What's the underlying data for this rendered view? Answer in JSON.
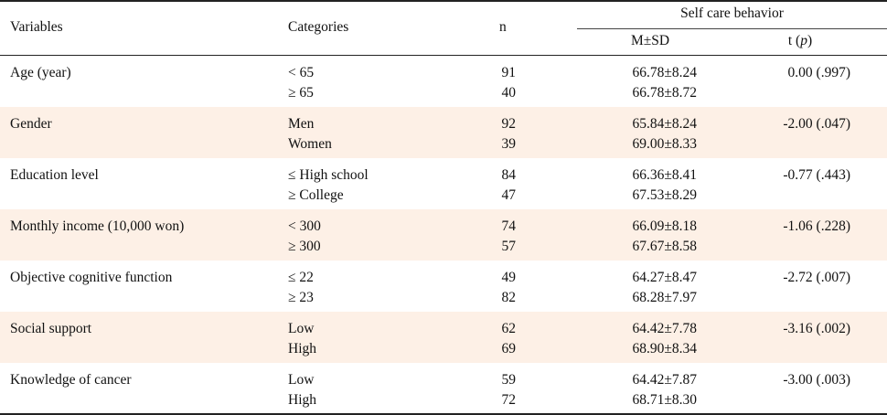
{
  "header": {
    "variables": "Variables",
    "categories": "Categories",
    "n": "n",
    "group_title": "Self care behavior",
    "msd": "M±SD",
    "t_prefix": "t (",
    "t_p": "p",
    "t_suffix": ")"
  },
  "colors": {
    "band": "#fdf0e6",
    "rule": "#222222"
  },
  "rows": [
    {
      "variable": "Age (year)",
      "cat1": "< 65",
      "cat2": "≥ 65",
      "n1": "91",
      "n2": "40",
      "msd1": "66.78±8.24",
      "msd2": "66.78±8.72",
      "t": "0.00 (.997)",
      "shaded": false
    },
    {
      "variable": "Gender",
      "cat1": "Men",
      "cat2": "Women",
      "n1": "92",
      "n2": "39",
      "msd1": "65.84±8.24",
      "msd2": "69.00±8.33",
      "t": "-2.00 (.047)",
      "shaded": true
    },
    {
      "variable": "Education level",
      "cat1": "≤ High school",
      "cat2": "≥ College",
      "n1": "84",
      "n2": "47",
      "msd1": "66.36±8.41",
      "msd2": "67.53±8.29",
      "t": "-0.77 (.443)",
      "shaded": false
    },
    {
      "variable": "Monthly income (10,000 won)",
      "cat1": "< 300",
      "cat2": "≥ 300",
      "n1": "74",
      "n2": "57",
      "msd1": "66.09±8.18",
      "msd2": "67.67±8.58",
      "t": "-1.06 (.228)",
      "shaded": true
    },
    {
      "variable": "Objective cognitive function",
      "cat1": "≤ 22",
      "cat2": "≥ 23",
      "n1": "49",
      "n2": "82",
      "msd1": "64.27±8.47",
      "msd2": "68.28±7.97",
      "t": "-2.72 (.007)",
      "shaded": false
    },
    {
      "variable": "Social support",
      "cat1": "Low",
      "cat2": "High",
      "n1": "62",
      "n2": "69",
      "msd1": "64.42±7.78",
      "msd2": "68.90±8.34",
      "t": "-3.16 (.002)",
      "shaded": true
    },
    {
      "variable": "Knowledge of cancer",
      "cat1": "Low",
      "cat2": "High",
      "n1": "59",
      "n2": "72",
      "msd1": "64.42±7.87",
      "msd2": "68.71±8.30",
      "t": "-3.00 (.003)",
      "shaded": false
    }
  ]
}
